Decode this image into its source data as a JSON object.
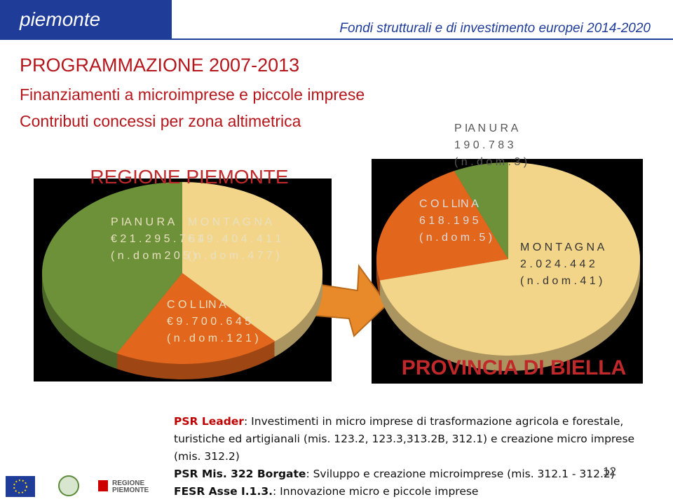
{
  "header": {
    "brand": "piemonte",
    "tagline": "Fondi strutturali e di investimento europei 2014-2020"
  },
  "titles": [
    "PROGRAMMAZIONE 2007-2013",
    "Finanziamenti a microimprese e piccole imprese",
    "Contributi concessi  per zona altimetrica"
  ],
  "chart_data": [
    {
      "type": "pie",
      "title": "REGIONE PIEMONTE",
      "categories": [
        "M O N T A G N A",
        "C O L LIN A",
        "P IA N U R A"
      ],
      "values": [
        19404411,
        9700645,
        21295754
      ],
      "value_labels": [
        "€ 1 9 . 4 0 4 . 4 1 1",
        "€ 9 . 7 0 0 . 6 4 5",
        "€ 2 1 . 2 9 5 . 7 5 4"
      ],
      "notes": [
        "( n . d o m . 4 7 7 )",
        "( n . d o m . 1 2 1 )",
        "( n . d o m  2 0 5 )"
      ],
      "colors": [
        "#f3d589",
        "#e2661c",
        "#6d9139"
      ]
    },
    {
      "type": "pie",
      "title": "PROVINCIA DI BIELLA",
      "categories": [
        "M O N T A G N A",
        "C O L LIN A",
        "P IA N U R A"
      ],
      "values": [
        2024442,
        618195,
        190783
      ],
      "value_labels": [
        "2 . 0 2 4 . 4 4 2",
        "6 1 8 . 1 9 5",
        "1 9 0 . 7 8 3"
      ],
      "notes": [
        "( n . d o m . 4 1 )",
        "( n . d o m . 5 )",
        "( n . d o m . 3 )"
      ],
      "colors": [
        "#f3d589",
        "#e2661c",
        "#6d9139"
      ]
    }
  ],
  "body": [
    [
      {
        "text": "PSR Leader",
        "style": "red"
      },
      {
        "text": ": Investimenti in micro imprese di trasformazione agricola e forestale, turistiche ed artigianali (mis. 123.2, 123.3,313.2B, 312.1) e creazione micro imprese (mis. 312.2)",
        "style": "plain"
      }
    ],
    [
      {
        "text": "PSR Mis. 322 Borgate",
        "style": "bold"
      },
      {
        "text": ": Sviluppo e creazione microimprese (mis. 312.1 - 312.2)",
        "style": "plain"
      }
    ],
    [
      {
        "text": "FESR Asse I.1.3.",
        "style": "bold"
      },
      {
        "text": ": Innovazione micro e piccole imprese",
        "style": "plain"
      }
    ]
  ],
  "page_number": "12",
  "logo_text": "REGIONE PIEMONTE"
}
